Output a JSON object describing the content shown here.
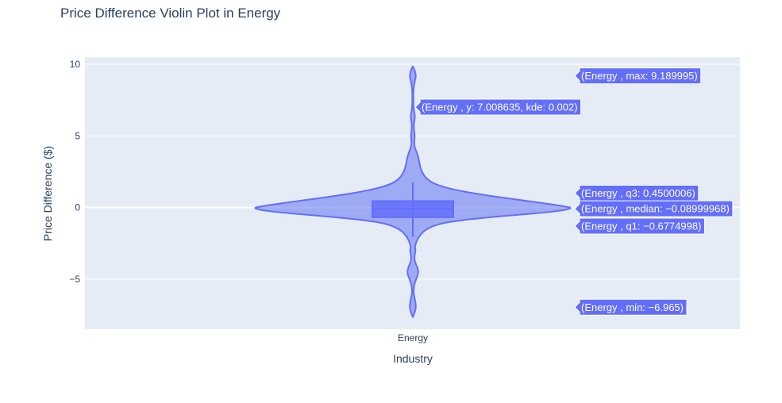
{
  "chart_data": {
    "type": "violin",
    "title": "Price Difference Violin Plot in Energy",
    "xlabel": "Industry",
    "ylabel": "Price Difference ($)",
    "categories": [
      "Energy"
    ],
    "ylim": [
      -8.5,
      10.5
    ],
    "yticks": [
      10,
      5,
      0,
      -5
    ],
    "ytick_labels": [
      "10",
      "5",
      "0",
      "−5"
    ],
    "grid": true,
    "colors": {
      "fill": "#6e7ef2",
      "line": "#636efa",
      "plot_bg": "#e5ecf6",
      "text": "#2a3f5f",
      "hover_bg": "#636efa"
    },
    "stats": {
      "min": -6.965,
      "q1": -0.6774998,
      "median": -0.08999968,
      "q3": 0.4500006,
      "max": 9.189995,
      "upper_fence": 1.75,
      "lower_fence": -2.05
    },
    "kde_profile": [
      {
        "y": 9.85,
        "w": 0.0
      },
      {
        "y": 9.6,
        "w": 0.012
      },
      {
        "y": 9.2,
        "w": 0.02
      },
      {
        "y": 8.8,
        "w": 0.012
      },
      {
        "y": 8.3,
        "w": 0.004
      },
      {
        "y": 7.6,
        "w": 0.003
      },
      {
        "y": 7.0,
        "w": 0.004
      },
      {
        "y": 6.6,
        "w": 0.01
      },
      {
        "y": 6.3,
        "w": 0.014
      },
      {
        "y": 5.9,
        "w": 0.007
      },
      {
        "y": 5.5,
        "w": 0.006
      },
      {
        "y": 5.0,
        "w": 0.013
      },
      {
        "y": 4.6,
        "w": 0.008
      },
      {
        "y": 4.2,
        "w": 0.011
      },
      {
        "y": 3.7,
        "w": 0.03
      },
      {
        "y": 3.2,
        "w": 0.04
      },
      {
        "y": 2.8,
        "w": 0.046
      },
      {
        "y": 2.4,
        "w": 0.06
      },
      {
        "y": 2.0,
        "w": 0.085
      },
      {
        "y": 1.6,
        "w": 0.14
      },
      {
        "y": 1.2,
        "w": 0.27
      },
      {
        "y": 0.8,
        "w": 0.48
      },
      {
        "y": 0.4,
        "w": 0.75
      },
      {
        "y": 0.1,
        "w": 0.93
      },
      {
        "y": -0.05,
        "w": 1.0
      },
      {
        "y": -0.3,
        "w": 0.88
      },
      {
        "y": -0.6,
        "w": 0.55
      },
      {
        "y": -1.0,
        "w": 0.2
      },
      {
        "y": -1.5,
        "w": 0.08
      },
      {
        "y": -2.1,
        "w": 0.032
      },
      {
        "y": -2.7,
        "w": 0.012
      },
      {
        "y": -3.0,
        "w": 0.018
      },
      {
        "y": -3.4,
        "w": 0.01
      },
      {
        "y": -3.8,
        "w": 0.012
      },
      {
        "y": -4.2,
        "w": 0.03
      },
      {
        "y": -4.6,
        "w": 0.035
      },
      {
        "y": -5.0,
        "w": 0.02
      },
      {
        "y": -5.5,
        "w": 0.006
      },
      {
        "y": -6.0,
        "w": 0.004
      },
      {
        "y": -6.5,
        "w": 0.015
      },
      {
        "y": -7.0,
        "w": 0.02
      },
      {
        "y": -7.4,
        "w": 0.01
      },
      {
        "y": -7.65,
        "w": 0.0
      }
    ],
    "hover_labels": [
      {
        "id": "max",
        "text": "(Energy , max: 9.189995)",
        "y": 9.189995,
        "side": "right"
      },
      {
        "id": "kde",
        "text": "(Energy , y: 7.008635, kde: 0.002)",
        "y": 7.008635,
        "side": "near"
      },
      {
        "id": "q3",
        "text": "(Energy , q3: 0.4500006)",
        "y": 1.0,
        "side": "right"
      },
      {
        "id": "median",
        "text": "(Energy , median: −0.08999968)",
        "y": -0.08999968,
        "side": "right"
      },
      {
        "id": "q1",
        "text": "(Energy , q1: −0.6774998)",
        "y": -1.3,
        "side": "right"
      },
      {
        "id": "min",
        "text": "(Energy , min: −6.965)",
        "y": -6.965,
        "side": "right"
      }
    ]
  }
}
